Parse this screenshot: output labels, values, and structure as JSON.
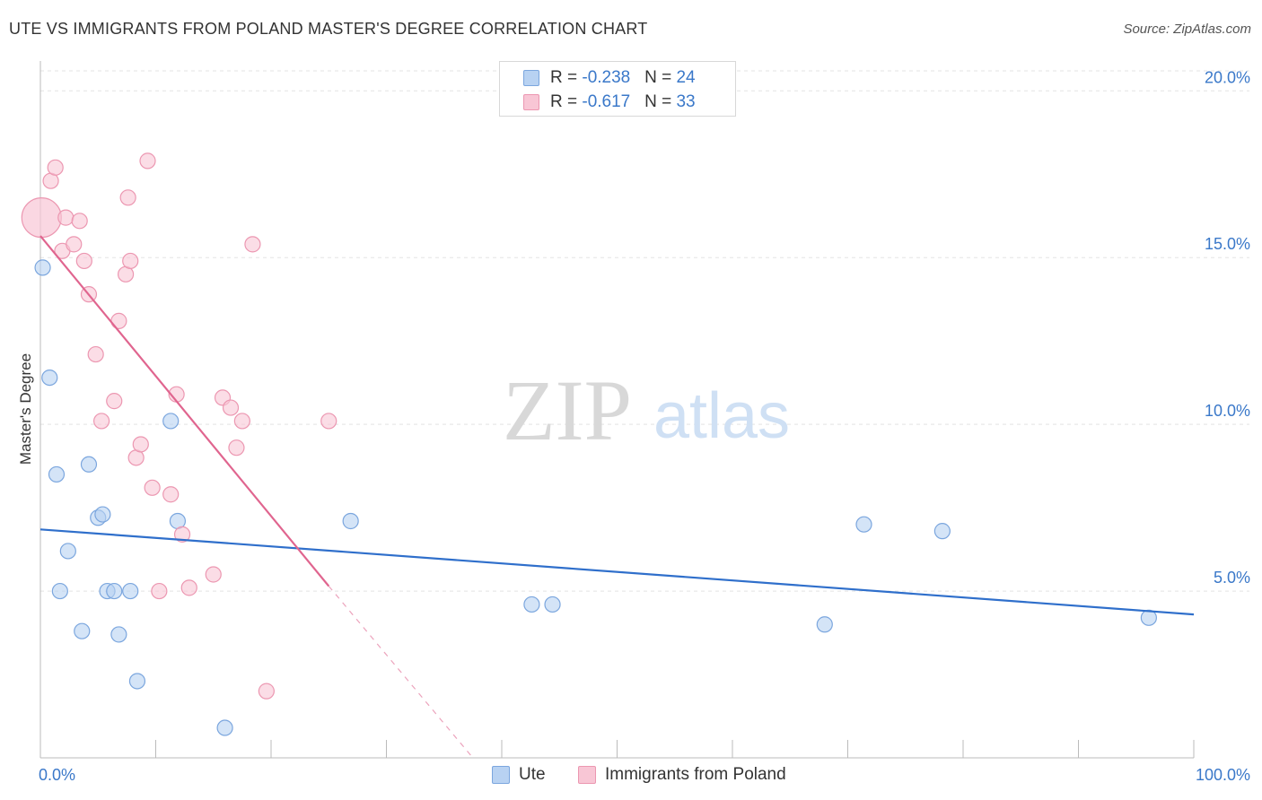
{
  "title": "UTE VS IMMIGRANTS FROM POLAND MASTER'S DEGREE CORRELATION CHART",
  "source": "Source: ZipAtlas.com",
  "watermark": {
    "zip": "ZIP",
    "atlas": "atlas"
  },
  "legend_top": [
    {
      "r_label": "R = ",
      "r_value": "-0.238",
      "n_label": "N = ",
      "n_value": "24"
    },
    {
      "r_label": "R = ",
      "r_value": "-0.617",
      "n_label": "N = ",
      "n_value": "33"
    }
  ],
  "colors": {
    "ute_fill": "#b8d2f2",
    "ute_stroke": "#7ba6de",
    "ute_line": "#2f6fcb",
    "poland_fill": "#f8c6d5",
    "poland_stroke": "#ec97b1",
    "poland_line": "#e0658f",
    "axis_text": "#3a78c9",
    "grid": "#e3e3e3"
  },
  "chart_data": {
    "type": "scatter",
    "title": "UTE VS IMMIGRANTS FROM POLAND MASTER'S DEGREE CORRELATION CHART",
    "xlabel": "",
    "ylabel": "Master's Degree",
    "xlim": [
      0,
      100
    ],
    "ylim": [
      0,
      20.6
    ],
    "x_tick_labels": [
      "0.0%",
      "100.0%"
    ],
    "y_ticks": [
      5,
      10,
      15,
      20
    ],
    "y_tick_labels": [
      "5.0%",
      "10.0%",
      "15.0%",
      "20.0%"
    ],
    "grid": true,
    "series": [
      {
        "name": "Ute",
        "r": -0.238,
        "n": 24,
        "points": [
          {
            "x": 0.2,
            "y": 14.7
          },
          {
            "x": 0.8,
            "y": 11.4
          },
          {
            "x": 1.4,
            "y": 8.5
          },
          {
            "x": 1.7,
            "y": 5.0
          },
          {
            "x": 2.4,
            "y": 6.2
          },
          {
            "x": 3.6,
            "y": 3.8
          },
          {
            "x": 4.2,
            "y": 8.8
          },
          {
            "x": 5.0,
            "y": 7.2
          },
          {
            "x": 5.4,
            "y": 7.3
          },
          {
            "x": 5.8,
            "y": 5.0
          },
          {
            "x": 6.4,
            "y": 5.0
          },
          {
            "x": 6.8,
            "y": 3.7
          },
          {
            "x": 7.8,
            "y": 5.0
          },
          {
            "x": 8.4,
            "y": 2.3
          },
          {
            "x": 11.3,
            "y": 10.1
          },
          {
            "x": 11.9,
            "y": 7.1
          },
          {
            "x": 16.0,
            "y": 0.9
          },
          {
            "x": 26.9,
            "y": 7.1
          },
          {
            "x": 42.6,
            "y": 4.6
          },
          {
            "x": 44.4,
            "y": 4.6
          },
          {
            "x": 68.0,
            "y": 4.0
          },
          {
            "x": 71.4,
            "y": 7.0
          },
          {
            "x": 78.2,
            "y": 6.8
          },
          {
            "x": 96.1,
            "y": 4.2
          }
        ],
        "trend": {
          "x0": 0,
          "y0": 6.85,
          "x1": 100,
          "y1": 4.3
        }
      },
      {
        "name": "Immigrants from Poland",
        "r": -0.617,
        "n": 33,
        "points": [
          {
            "x": 0.1,
            "y": 16.2,
            "big": true
          },
          {
            "x": 0.9,
            "y": 17.3
          },
          {
            "x": 1.3,
            "y": 17.7
          },
          {
            "x": 1.9,
            "y": 15.2
          },
          {
            "x": 2.2,
            "y": 16.2
          },
          {
            "x": 2.9,
            "y": 15.4
          },
          {
            "x": 3.4,
            "y": 16.1
          },
          {
            "x": 3.8,
            "y": 14.9
          },
          {
            "x": 4.2,
            "y": 13.9
          },
          {
            "x": 4.8,
            "y": 12.1
          },
          {
            "x": 5.3,
            "y": 10.1
          },
          {
            "x": 6.4,
            "y": 10.7
          },
          {
            "x": 6.8,
            "y": 13.1
          },
          {
            "x": 7.4,
            "y": 14.5
          },
          {
            "x": 7.6,
            "y": 16.8
          },
          {
            "x": 7.8,
            "y": 14.9
          },
          {
            "x": 8.3,
            "y": 9.0
          },
          {
            "x": 8.7,
            "y": 9.4
          },
          {
            "x": 9.3,
            "y": 17.9
          },
          {
            "x": 9.7,
            "y": 8.1
          },
          {
            "x": 10.3,
            "y": 5.0
          },
          {
            "x": 11.3,
            "y": 7.9
          },
          {
            "x": 11.8,
            "y": 10.9
          },
          {
            "x": 12.3,
            "y": 6.7
          },
          {
            "x": 12.9,
            "y": 5.1
          },
          {
            "x": 15.0,
            "y": 5.5
          },
          {
            "x": 15.8,
            "y": 10.8
          },
          {
            "x": 16.5,
            "y": 10.5
          },
          {
            "x": 17.0,
            "y": 9.3
          },
          {
            "x": 17.5,
            "y": 10.1
          },
          {
            "x": 18.4,
            "y": 15.4
          },
          {
            "x": 19.6,
            "y": 2.0
          },
          {
            "x": 25.0,
            "y": 10.1
          }
        ],
        "trend": {
          "x0": 0,
          "y0": 15.65,
          "x1": 25.0,
          "y1": 5.15
        },
        "trend_dashed_extension": {
          "x0": 25.0,
          "y0": 5.15,
          "x1": 37.5,
          "y1": -0.1
        }
      }
    ]
  },
  "legend_bottom": [
    {
      "label": "Ute"
    },
    {
      "label": "Immigrants from Poland"
    }
  ]
}
